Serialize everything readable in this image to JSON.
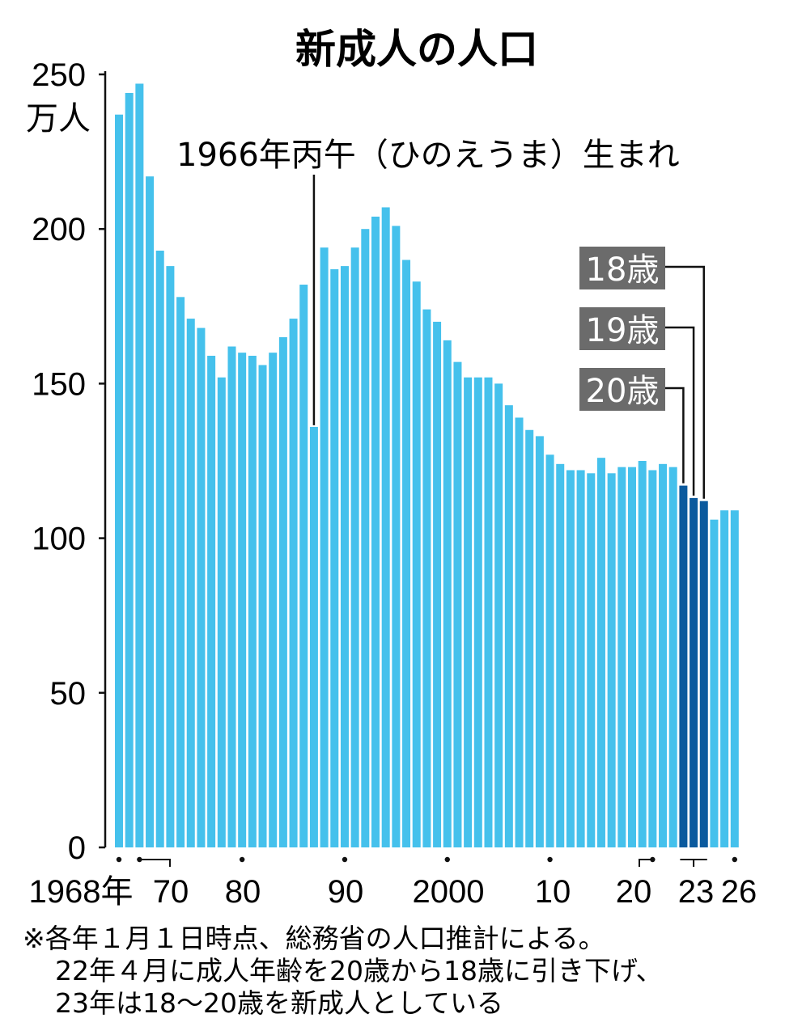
{
  "chart_data": {
    "type": "bar",
    "title": "新成人の人口",
    "ylabel": "万人",
    "ylim": [
      0,
      250
    ],
    "yticks": [
      "0",
      "50",
      "100",
      "150",
      "200",
      "250"
    ],
    "xtick_labels": [
      "1968年",
      "70",
      "80",
      "90",
      "2000",
      "10",
      "20",
      "23",
      "26"
    ],
    "grid": false,
    "colors": {
      "default": "#45c1ec",
      "highlight": "#0b5a9e"
    },
    "bars": [
      {
        "year": "1968",
        "value": 237
      },
      {
        "year": "1969",
        "value": 244
      },
      {
        "year": "1970",
        "value": 247
      },
      {
        "year": "1971",
        "value": 217
      },
      {
        "year": "1972",
        "value": 193
      },
      {
        "year": "1973",
        "value": 188
      },
      {
        "year": "1974",
        "value": 178
      },
      {
        "year": "1975",
        "value": 171
      },
      {
        "year": "1976",
        "value": 168
      },
      {
        "year": "1977",
        "value": 159
      },
      {
        "year": "1978",
        "value": 152
      },
      {
        "year": "1979",
        "value": 162
      },
      {
        "year": "1980",
        "value": 160
      },
      {
        "year": "1981",
        "value": 159
      },
      {
        "year": "1982",
        "value": 156
      },
      {
        "year": "1983",
        "value": 160
      },
      {
        "year": "1984",
        "value": 165
      },
      {
        "year": "1985",
        "value": 171
      },
      {
        "year": "1986",
        "value": 182
      },
      {
        "year": "1987",
        "value": 136
      },
      {
        "year": "1988",
        "value": 194
      },
      {
        "year": "1989",
        "value": 187
      },
      {
        "year": "1990",
        "value": 188
      },
      {
        "year": "1991",
        "value": 194
      },
      {
        "year": "1992",
        "value": 200
      },
      {
        "year": "1993",
        "value": 204
      },
      {
        "year": "1994",
        "value": 207
      },
      {
        "year": "1995",
        "value": 201
      },
      {
        "year": "1996",
        "value": 190
      },
      {
        "year": "1997",
        "value": 183
      },
      {
        "year": "1998",
        "value": 174
      },
      {
        "year": "1999",
        "value": 170
      },
      {
        "year": "2000",
        "value": 164
      },
      {
        "year": "2001",
        "value": 157
      },
      {
        "year": "2002",
        "value": 152
      },
      {
        "year": "2003",
        "value": 152
      },
      {
        "year": "2004",
        "value": 152
      },
      {
        "year": "2005",
        "value": 150
      },
      {
        "year": "2006",
        "value": 143
      },
      {
        "year": "2007",
        "value": 139
      },
      {
        "year": "2008",
        "value": 135
      },
      {
        "year": "2009",
        "value": 133
      },
      {
        "year": "2010",
        "value": 127
      },
      {
        "year": "2011",
        "value": 124
      },
      {
        "year": "2012",
        "value": 122
      },
      {
        "year": "2013",
        "value": 122
      },
      {
        "year": "2014",
        "value": 121
      },
      {
        "year": "2015",
        "value": 126
      },
      {
        "year": "2016",
        "value": 121
      },
      {
        "year": "2017",
        "value": 123
      },
      {
        "year": "2018",
        "value": 123
      },
      {
        "year": "2019",
        "value": 125
      },
      {
        "year": "2020",
        "value": 122
      },
      {
        "year": "2021",
        "value": 124
      },
      {
        "year": "2022",
        "value": 123
      },
      {
        "year": "2023",
        "age": "20歳",
        "value": 117,
        "highlight": true
      },
      {
        "year": "2023",
        "age": "19歳",
        "value": 113,
        "highlight": true
      },
      {
        "year": "2023",
        "age": "18歳",
        "value": 112,
        "highlight": true
      },
      {
        "year": "2024",
        "value": 106
      },
      {
        "year": "2025",
        "value": 109
      },
      {
        "year": "2026",
        "value": 109
      }
    ],
    "annotations": {
      "hinoeuma": "1966年丙午（ひのえうま）生まれ",
      "age_18": "18歳",
      "age_19": "19歳",
      "age_20": "20歳"
    }
  },
  "footnote": [
    "※各年１月１日時点、総務省の人口推計による。",
    "22年４月に成人年齢を20歳から18歳に引き下げ、",
    "23年は18～20歳を新成人としている"
  ]
}
